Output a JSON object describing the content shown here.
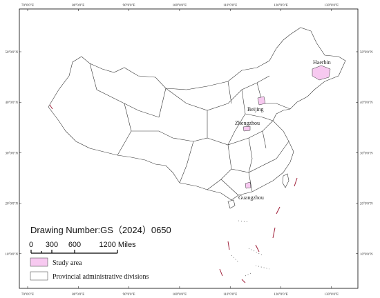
{
  "map": {
    "graticule": {
      "longitudes": [
        "70°0'0\"E",
        "80°0'0\"E",
        "90°0'0\"E",
        "100°0'0\"E",
        "110°0'0\"E",
        "120°0'0\"E",
        "130°0'0\"E"
      ],
      "latitudes": [
        "50°0'0\"N",
        "40°0'0\"N",
        "30°0'0\"N",
        "20°0'0\"N",
        "10°0'0\"N"
      ]
    },
    "cities": [
      "Haerbin",
      "Beijing",
      "Zhengzhou",
      "Guangzhou"
    ],
    "drawing_number": "Drawing Number:GS（2024）0650",
    "scale_bar": {
      "labels": [
        "0",
        "300",
        "600",
        "1200 Miles"
      ]
    },
    "legend": [
      "Study area",
      "Provincial administrative divisions"
    ]
  }
}
